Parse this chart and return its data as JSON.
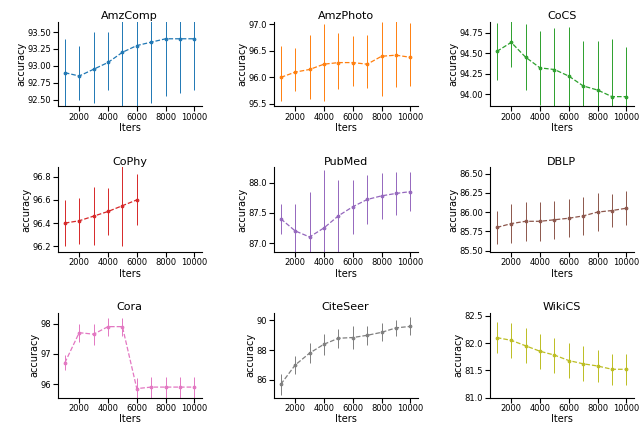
{
  "subplots": [
    {
      "title": "AmzComp",
      "color": "#1f77b4",
      "xlabel": "Iters",
      "ylabel": "accuracy",
      "x": [
        1000,
        2000,
        3000,
        4000,
        5000,
        6000,
        7000,
        8000,
        9000,
        10000
      ],
      "y": [
        92.9,
        92.85,
        92.95,
        93.05,
        93.2,
        93.3,
        93.35,
        93.4,
        93.4,
        93.4
      ],
      "yerr_low": [
        0.55,
        0.35,
        0.5,
        0.4,
        0.8,
        1.0,
        0.9,
        0.85,
        0.8,
        0.75
      ],
      "yerr_high": [
        0.5,
        0.45,
        0.55,
        0.45,
        0.85,
        0.95,
        0.85,
        0.8,
        0.75,
        0.7
      ],
      "ylim": [
        92.4,
        93.65
      ]
    },
    {
      "title": "AmzPhoto",
      "color": "#ff7f0e",
      "xlabel": "Iters",
      "ylabel": "accuracy",
      "x": [
        1000,
        2000,
        3000,
        4000,
        5000,
        6000,
        7000,
        8000,
        9000,
        10000
      ],
      "y": [
        96.0,
        96.1,
        96.15,
        96.25,
        96.28,
        96.28,
        96.25,
        96.4,
        96.42,
        96.38
      ],
      "yerr_low": [
        0.45,
        0.35,
        0.55,
        0.7,
        0.5,
        0.45,
        0.45,
        0.75,
        0.6,
        0.55
      ],
      "yerr_high": [
        0.6,
        0.45,
        0.65,
        0.75,
        0.55,
        0.5,
        0.55,
        0.65,
        0.65,
        0.65
      ],
      "ylim": [
        95.45,
        97.05
      ]
    },
    {
      "title": "CoCS",
      "color": "#2ca02c",
      "xlabel": "Iters",
      "ylabel": "accuracy",
      "x": [
        1000,
        2000,
        3000,
        4000,
        5000,
        6000,
        7000,
        8000,
        9000,
        10000
      ],
      "y": [
        94.52,
        94.63,
        94.45,
        94.32,
        94.3,
        94.22,
        94.1,
        94.05,
        93.97,
        93.97
      ],
      "yerr_low": [
        0.35,
        0.3,
        0.4,
        0.45,
        0.5,
        0.55,
        0.5,
        0.55,
        0.6,
        0.55
      ],
      "yerr_high": [
        0.35,
        0.3,
        0.4,
        0.45,
        0.5,
        0.6,
        0.55,
        0.6,
        0.7,
        0.6
      ],
      "ylim": [
        93.85,
        94.88
      ]
    },
    {
      "title": "CoPhy",
      "color": "#d62728",
      "xlabel": "Iters",
      "ylabel": "accuracy",
      "x": [
        1000,
        2000,
        3000,
        4000,
        5000,
        6000,
        7000,
        8000,
        9000,
        10000
      ],
      "y": [
        96.4,
        96.42,
        96.46,
        96.5,
        96.55,
        96.6,
        null,
        null,
        null,
        null
      ],
      "yerr_low": [
        0.2,
        0.2,
        0.25,
        0.2,
        0.35,
        0.22,
        null,
        null,
        null,
        null
      ],
      "yerr_high": [
        0.2,
        0.2,
        0.25,
        0.2,
        0.35,
        0.22,
        null,
        null,
        null,
        null
      ],
      "ylim": [
        96.15,
        96.88
      ]
    },
    {
      "title": "PubMed",
      "color": "#9467bd",
      "xlabel": "Iters",
      "ylabel": "accuracy",
      "x": [
        1000,
        2000,
        3000,
        4000,
        5000,
        6000,
        7000,
        8000,
        9000,
        10000
      ],
      "y": [
        87.4,
        87.2,
        87.1,
        87.25,
        87.45,
        87.6,
        87.72,
        87.78,
        87.82,
        87.85
      ],
      "yerr_low": [
        0.25,
        0.45,
        0.75,
        0.95,
        0.6,
        0.45,
        0.4,
        0.38,
        0.35,
        0.32
      ],
      "yerr_high": [
        0.25,
        0.45,
        0.75,
        0.95,
        0.6,
        0.45,
        0.4,
        0.38,
        0.35,
        0.32
      ],
      "ylim": [
        86.85,
        88.25
      ]
    },
    {
      "title": "DBLP",
      "color": "#8c564b",
      "xlabel": "Iters",
      "ylabel": "accuracy",
      "x": [
        1000,
        2000,
        3000,
        4000,
        5000,
        6000,
        7000,
        8000,
        9000,
        10000
      ],
      "y": [
        85.8,
        85.85,
        85.88,
        85.88,
        85.9,
        85.92,
        85.95,
        86.0,
        86.02,
        86.05
      ],
      "yerr_low": [
        0.22,
        0.25,
        0.25,
        0.25,
        0.25,
        0.25,
        0.25,
        0.25,
        0.22,
        0.22
      ],
      "yerr_high": [
        0.22,
        0.25,
        0.25,
        0.25,
        0.25,
        0.25,
        0.25,
        0.25,
        0.22,
        0.22
      ],
      "ylim": [
        85.48,
        86.58
      ]
    },
    {
      "title": "Cora",
      "color": "#e377c2",
      "xlabel": "Iters",
      "ylabel": "accuracy",
      "x": [
        1000,
        2000,
        3000,
        4000,
        5000,
        6000,
        7000,
        8000,
        9000,
        10000
      ],
      "y": [
        96.7,
        97.7,
        97.65,
        97.9,
        97.9,
        95.85,
        95.9,
        95.9,
        95.9,
        95.9
      ],
      "yerr_low": [
        0.25,
        0.3,
        0.35,
        0.3,
        0.3,
        0.35,
        0.35,
        0.35,
        0.35,
        0.35
      ],
      "yerr_high": [
        0.25,
        0.3,
        0.35,
        0.3,
        0.3,
        0.35,
        0.35,
        0.35,
        0.35,
        0.35
      ],
      "ylim": [
        95.55,
        98.35
      ]
    },
    {
      "title": "CiteSeer",
      "color": "#7f7f7f",
      "xlabel": "Iters",
      "ylabel": "accuracy",
      "x": [
        1000,
        2000,
        3000,
        4000,
        5000,
        6000,
        7000,
        8000,
        9000,
        10000
      ],
      "y": [
        85.7,
        87.0,
        87.8,
        88.4,
        88.8,
        88.85,
        89.0,
        89.2,
        89.5,
        89.6
      ],
      "yerr_low": [
        0.7,
        0.6,
        0.65,
        0.7,
        0.65,
        0.8,
        0.65,
        0.6,
        0.55,
        0.6
      ],
      "yerr_high": [
        0.7,
        0.6,
        0.65,
        0.7,
        0.65,
        0.8,
        0.65,
        0.6,
        0.55,
        0.6
      ],
      "ylim": [
        84.8,
        90.5
      ]
    },
    {
      "title": "WikiCS",
      "color": "#bcbd22",
      "xlabel": "Iters",
      "ylabel": "accuracy",
      "x": [
        1000,
        2000,
        3000,
        4000,
        5000,
        6000,
        7000,
        8000,
        9000,
        10000
      ],
      "y": [
        82.1,
        82.05,
        81.95,
        81.85,
        81.78,
        81.68,
        81.62,
        81.58,
        81.52,
        81.52
      ],
      "yerr_low": [
        0.28,
        0.32,
        0.32,
        0.32,
        0.32,
        0.32,
        0.32,
        0.3,
        0.28,
        0.28
      ],
      "yerr_high": [
        0.28,
        0.32,
        0.32,
        0.32,
        0.32,
        0.32,
        0.32,
        0.3,
        0.28,
        0.28
      ],
      "ylim": [
        81.0,
        82.55
      ]
    }
  ],
  "xticks": [
    2000,
    4000,
    6000,
    8000,
    10000
  ],
  "tick_fontsize": 6,
  "label_fontsize": 7,
  "title_fontsize": 8
}
